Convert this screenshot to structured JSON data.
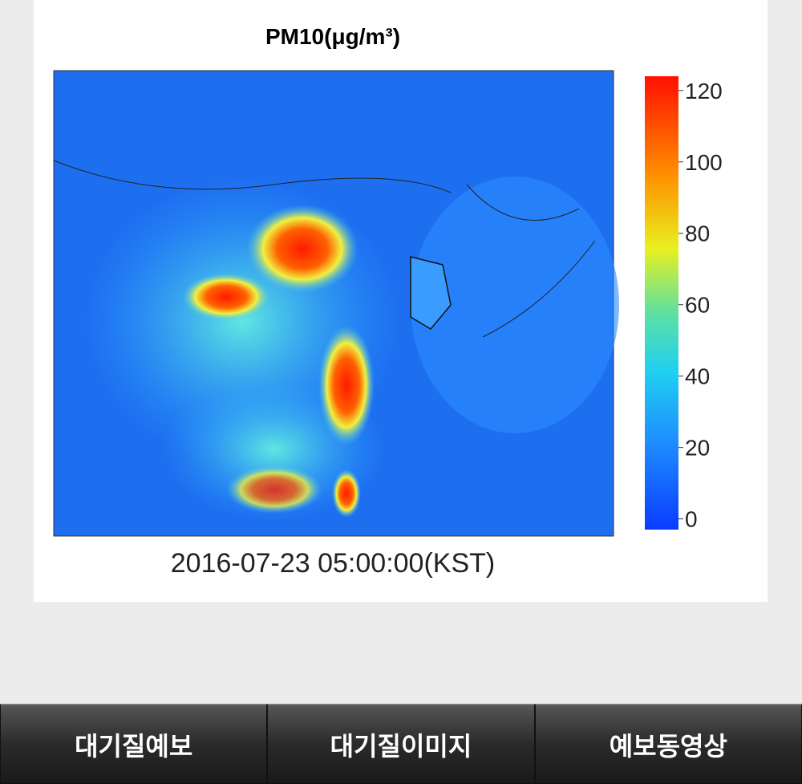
{
  "map_panel": {
    "title": "PM10(μg/m³)",
    "timestamp": "2016-07-23 05:00:00(KST)",
    "colorbar": {
      "ticks": [
        0,
        20,
        40,
        60,
        80,
        100,
        120
      ],
      "lim": [
        -3,
        124
      ]
    }
  },
  "tabs": [
    "대기질예보",
    "대기질이미지",
    "예보동영상"
  ]
}
